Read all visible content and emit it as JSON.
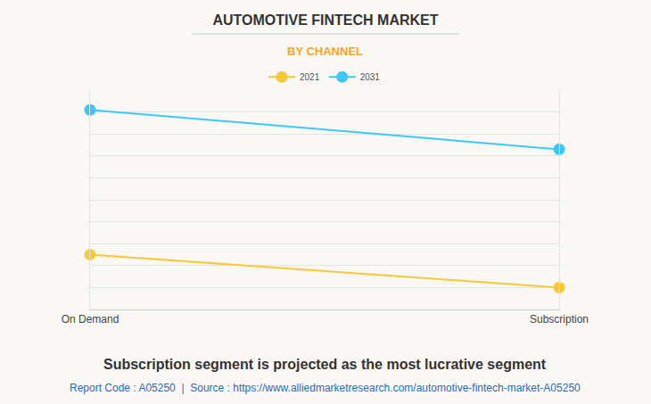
{
  "chart_data": {
    "type": "line",
    "title": "AUTOMOTIVE FINTECH MARKET",
    "subtitle": "BY CHANNEL",
    "annotations": [
      "Subscription segment is projected as the most lucrative segment",
      "Report Code : A05250  |  Source : https://www.alliedmarketresearch.com/automotive-fintech-market-A05250"
    ],
    "categories": [
      "On Demand",
      "Subscription"
    ],
    "series": [
      {
        "name": "2021",
        "color": "#f7c93a",
        "values": [
          2.5,
          1.0
        ]
      },
      {
        "name": "2031",
        "color": "#3ec6f7",
        "values": [
          9.1,
          7.3
        ]
      }
    ],
    "ylim": [
      0,
      10
    ],
    "yticks": [
      0,
      1,
      2,
      3,
      4,
      5,
      6,
      7,
      8,
      9,
      10
    ],
    "grid": true,
    "legend": "top",
    "tick_labels": "x",
    "marker": "circle"
  }
}
